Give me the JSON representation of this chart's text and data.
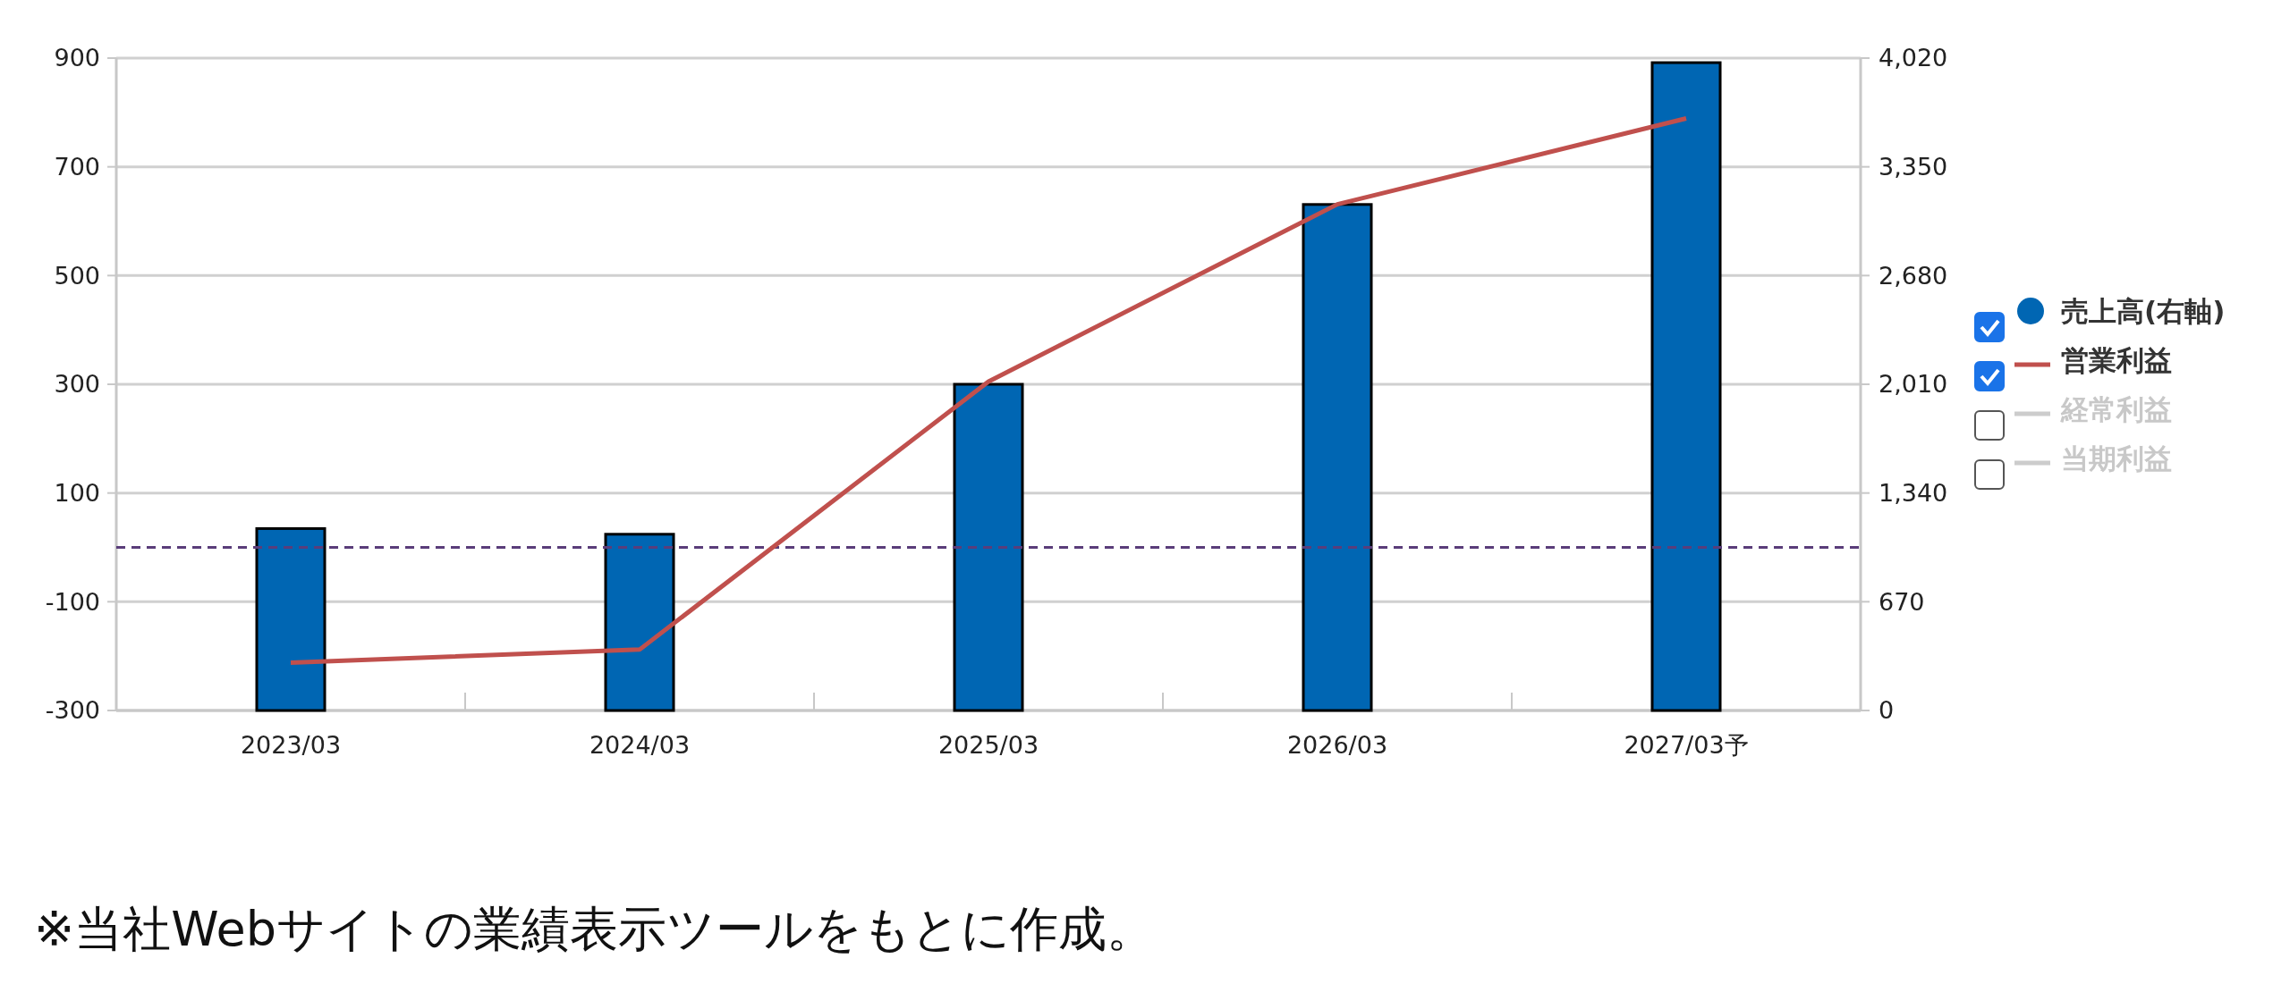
{
  "chart_data": {
    "type": "bar",
    "categories": [
      "2023/03",
      "2024/03",
      "2025/03",
      "2026/03",
      "2027/03予"
    ],
    "series": [
      {
        "name": "売上高(右軸)",
        "axis": "y2",
        "color": "#0066b3",
        "values": [
          1121,
          1086,
          2010,
          3118,
          3992
        ]
      },
      {
        "name": "営業利益",
        "type": "line",
        "axis": "y",
        "color": "#c0504d",
        "values": [
          -212,
          -188,
          305,
          631,
          789
        ]
      },
      {
        "name": "経常利益",
        "type": "line",
        "color": "#cccccc",
        "values": [
          null,
          null,
          null,
          null,
          null
        ]
      },
      {
        "name": "当期利益",
        "type": "line",
        "color": "#cccccc",
        "values": [
          null,
          null,
          null,
          null,
          null
        ]
      }
    ],
    "ylim": [
      -300,
      900
    ],
    "yticks": [
      -300,
      -100,
      100,
      300,
      500,
      700,
      900
    ],
    "y2lim": [
      0,
      4020
    ],
    "y2ticks": [
      0,
      670,
      {
        "value": 1340,
        "label": "1,340"
      },
      {
        "value": 2010,
        "label": "2,010"
      },
      {
        "value": 2680,
        "label": "2,680"
      },
      {
        "value": 3350,
        "label": "3,350"
      },
      {
        "value": 4020,
        "label": "4,020"
      }
    ],
    "ref_lines": [
      {
        "axis": "y",
        "value": 0,
        "color": "#5a3d7a",
        "line_style": "dashed"
      }
    ],
    "grid": "y",
    "legend": "right",
    "annotations": [
      "※当社Webサイトの業績表示ツールをもとに作成。"
    ]
  }
}
